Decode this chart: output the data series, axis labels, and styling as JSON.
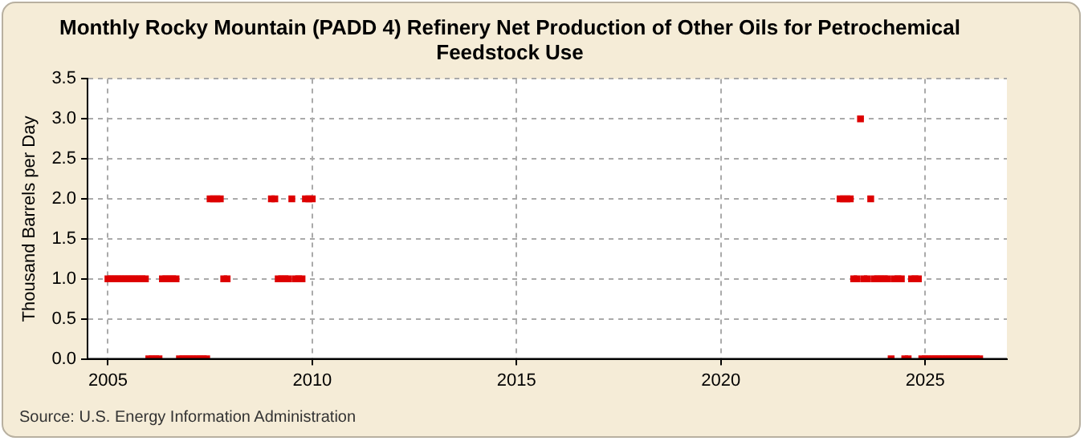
{
  "chart_data": {
    "type": "scatter",
    "title": "Monthly Rocky Mountain (PADD 4) Refinery Net Production of Other Oils for Petrochemical Feedstock Use",
    "ylabel": "Thousand Barrels per Day",
    "annotations": [
      "Source: U.S. Energy Information Administration"
    ],
    "x": [
      "2005-01",
      "2005-02",
      "2005-03",
      "2005-04",
      "2005-05",
      "2005-06",
      "2005-07",
      "2005-08",
      "2005-09",
      "2005-10",
      "2005-11",
      "2005-12",
      "2006-01",
      "2006-02",
      "2006-03",
      "2006-04",
      "2006-05",
      "2006-06",
      "2006-07",
      "2006-08",
      "2006-09",
      "2006-10",
      "2006-11",
      "2006-12",
      "2007-01",
      "2007-02",
      "2007-03",
      "2007-04",
      "2007-05",
      "2007-06",
      "2007-07",
      "2007-08",
      "2007-09",
      "2007-10",
      "2007-11",
      "2007-12",
      "2009-01",
      "2009-02",
      "2009-03",
      "2009-04",
      "2009-05",
      "2009-06",
      "2009-07",
      "2009-08",
      "2009-09",
      "2009-10",
      "2009-11",
      "2009-12",
      "2010-01",
      "2022-12",
      "2023-01",
      "2023-02",
      "2023-03",
      "2023-04",
      "2023-05",
      "2023-06",
      "2023-07",
      "2023-08",
      "2023-09",
      "2023-10",
      "2023-11",
      "2023-12",
      "2024-01",
      "2024-02",
      "2024-03",
      "2024-04",
      "2024-05",
      "2024-06",
      "2024-07",
      "2024-08",
      "2024-09",
      "2024-10",
      "2024-11",
      "2024-12",
      "2025-01",
      "2025-02",
      "2025-03",
      "2025-04",
      "2025-05",
      "2025-06",
      "2025-07",
      "2025-08",
      "2025-09",
      "2025-10",
      "2025-11",
      "2025-12",
      "2026-01",
      "2026-02",
      "2026-03",
      "2026-04",
      "2026-05"
    ],
    "series": [
      {
        "color": "#dd0000",
        "values": [
          1,
          1,
          1,
          1,
          1,
          1,
          1,
          1,
          1,
          1,
          1,
          1,
          0,
          0,
          0,
          0,
          1,
          1,
          1,
          1,
          1,
          0,
          0,
          0,
          0,
          0,
          0,
          0,
          0,
          0,
          2,
          2,
          2,
          2,
          1,
          1,
          2,
          2,
          1,
          1,
          1,
          1,
          2,
          1,
          1,
          1,
          2,
          2,
          2,
          2,
          2,
          2,
          2,
          1,
          1,
          3,
          1,
          1,
          2,
          1,
          1,
          1,
          1,
          1,
          0,
          1,
          1,
          1,
          0,
          0,
          1,
          1,
          1,
          0,
          0,
          0,
          0,
          0,
          0,
          0,
          0,
          0,
          0,
          0,
          0,
          0,
          0,
          0,
          0,
          0,
          0
        ]
      }
    ],
    "xlim": [
      "2004-07",
      "2027-01"
    ],
    "xticks": [
      "2005",
      "2010",
      "2015",
      "2020",
      "2025"
    ],
    "ylim": [
      0,
      3.5
    ],
    "yticks": [
      {
        "value": 0,
        "label": "0.0"
      },
      {
        "value": 0.5,
        "label": "0.5"
      },
      {
        "value": 1,
        "label": "1.0"
      },
      {
        "value": 1.5,
        "label": "1.5"
      },
      {
        "value": 2,
        "label": "2.0"
      },
      {
        "value": 2.5,
        "label": "2.5"
      },
      {
        "value": 3,
        "label": "3.0"
      },
      {
        "value": 3.5,
        "label": "3.5"
      }
    ],
    "grid": true,
    "legend": false,
    "marker": "square"
  }
}
